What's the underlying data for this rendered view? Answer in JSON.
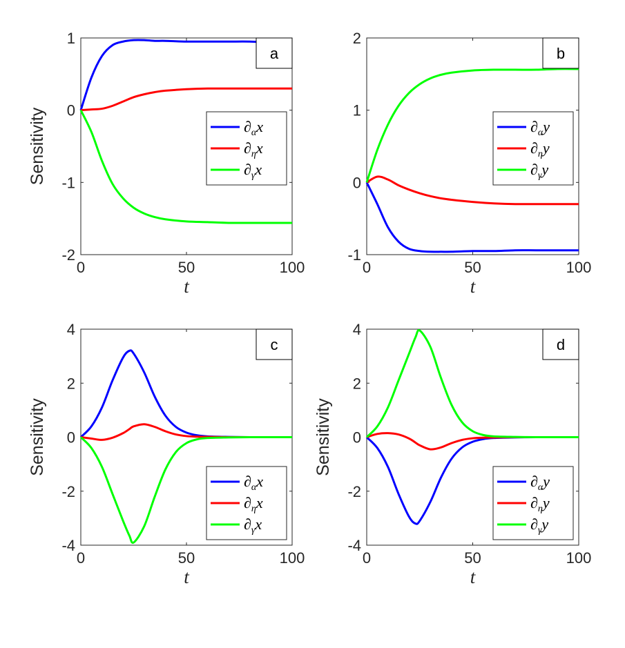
{
  "chart_data": [
    {
      "panel": "a",
      "type": "line",
      "xlabel": "t",
      "ylabel": "Sensitivity",
      "xlim": [
        0,
        100
      ],
      "ylim": [
        -2,
        1
      ],
      "xticks": [
        "0",
        "50",
        "100"
      ],
      "yticks": [
        "-2",
        "-1",
        "0",
        "1"
      ],
      "legend_position": "right-middle",
      "x": [
        0,
        5,
        10,
        15,
        20,
        25,
        30,
        35,
        40,
        50,
        60,
        70,
        80,
        90,
        100
      ],
      "series": [
        {
          "name": "∂αx",
          "sym": "∂",
          "sub": "α",
          "var": "x",
          "color": "#0000ff",
          "values": [
            0,
            0.45,
            0.75,
            0.9,
            0.95,
            0.97,
            0.97,
            0.96,
            0.96,
            0.95,
            0.95,
            0.95,
            0.95,
            0.94,
            0.94
          ]
        },
        {
          "name": "∂ηx",
          "sym": "∂",
          "sub": "η",
          "var": "x",
          "color": "#ff0000",
          "values": [
            0,
            0.01,
            0.02,
            0.06,
            0.12,
            0.18,
            0.22,
            0.25,
            0.27,
            0.29,
            0.3,
            0.3,
            0.3,
            0.3,
            0.3
          ]
        },
        {
          "name": "∂γx",
          "sym": "∂",
          "sub": "γ",
          "var": "x",
          "color": "#00ff00",
          "values": [
            0,
            -0.3,
            -0.7,
            -1.02,
            -1.22,
            -1.35,
            -1.43,
            -1.48,
            -1.51,
            -1.54,
            -1.55,
            -1.56,
            -1.56,
            -1.56,
            -1.56
          ]
        }
      ]
    },
    {
      "panel": "b",
      "type": "line",
      "xlabel": "t",
      "ylabel": "",
      "xlim": [
        0,
        100
      ],
      "ylim": [
        -1,
        2
      ],
      "xticks": [
        "0",
        "50",
        "100"
      ],
      "yticks": [
        "-1",
        "0",
        "1",
        "2"
      ],
      "legend_position": "right-middle",
      "x": [
        0,
        5,
        10,
        15,
        20,
        25,
        30,
        35,
        40,
        50,
        60,
        70,
        80,
        90,
        100
      ],
      "series": [
        {
          "name": "∂αy",
          "sym": "∂",
          "sub": "α",
          "var": "y",
          "color": "#0000ff",
          "values": [
            0,
            -0.3,
            -0.62,
            -0.82,
            -0.92,
            -0.95,
            -0.96,
            -0.96,
            -0.96,
            -0.95,
            -0.95,
            -0.94,
            -0.94,
            -0.94,
            -0.94
          ]
        },
        {
          "name": "∂ηy",
          "sym": "∂",
          "sub": "η",
          "var": "y",
          "color": "#ff0000",
          "values": [
            0,
            0.08,
            0.04,
            -0.04,
            -0.1,
            -0.15,
            -0.19,
            -0.22,
            -0.24,
            -0.27,
            -0.29,
            -0.3,
            -0.3,
            -0.3,
            -0.3
          ]
        },
        {
          "name": "∂γy",
          "sym": "∂",
          "sub": "γ",
          "var": "y",
          "color": "#00ff00",
          "values": [
            0,
            0.45,
            0.8,
            1.06,
            1.24,
            1.36,
            1.44,
            1.49,
            1.52,
            1.55,
            1.56,
            1.56,
            1.56,
            1.57,
            1.57
          ]
        }
      ]
    },
    {
      "panel": "c",
      "type": "line",
      "xlabel": "t",
      "ylabel": "Sensitivity",
      "xlim": [
        0,
        100
      ],
      "ylim": [
        -4,
        4
      ],
      "xticks": [
        "0",
        "50",
        "100"
      ],
      "yticks": [
        "-4",
        "-2",
        "0",
        "2",
        "4"
      ],
      "legend_position": "bottom-right",
      "x": [
        0,
        5,
        10,
        15,
        20,
        23,
        25,
        30,
        35,
        40,
        45,
        50,
        55,
        60,
        70,
        80,
        90,
        100
      ],
      "series": [
        {
          "name": "∂αx",
          "sym": "∂",
          "sub": "α",
          "var": "x",
          "color": "#0000ff",
          "values": [
            0,
            0.4,
            1.1,
            2.1,
            2.95,
            3.2,
            3.1,
            2.4,
            1.5,
            0.8,
            0.38,
            0.17,
            0.07,
            0.03,
            0.01,
            0,
            0,
            0
          ]
        },
        {
          "name": "∂ηx",
          "sym": "∂",
          "sub": "η",
          "var": "x",
          "color": "#ff0000",
          "values": [
            0,
            -0.05,
            -0.1,
            -0.02,
            0.15,
            0.3,
            0.4,
            0.48,
            0.38,
            0.22,
            0.1,
            0.04,
            0.02,
            0.01,
            0,
            0,
            0,
            0
          ]
        },
        {
          "name": "∂γx",
          "sym": "∂",
          "sub": "γ",
          "var": "x",
          "color": "#00ff00",
          "values": [
            0,
            -0.4,
            -1.1,
            -2.1,
            -3.1,
            -3.65,
            -3.9,
            -3.3,
            -2.2,
            -1.2,
            -0.55,
            -0.22,
            -0.08,
            -0.03,
            -0.01,
            0,
            0,
            0
          ]
        }
      ]
    },
    {
      "panel": "d",
      "type": "line",
      "xlabel": "t",
      "ylabel": "Sensitivity",
      "xlim": [
        0,
        100
      ],
      "ylim": [
        -4,
        4
      ],
      "xticks": [
        "0",
        "50",
        "100"
      ],
      "yticks": [
        "-4",
        "-2",
        "0",
        "2",
        "4"
      ],
      "legend_position": "bottom-right",
      "x": [
        0,
        5,
        10,
        15,
        20,
        23,
        25,
        30,
        35,
        40,
        45,
        50,
        55,
        60,
        70,
        80,
        90,
        100
      ],
      "series": [
        {
          "name": "∂αy",
          "sym": "∂",
          "sub": "α",
          "var": "y",
          "color": "#0000ff",
          "values": [
            0,
            -0.4,
            -1.1,
            -2.1,
            -2.95,
            -3.2,
            -3.1,
            -2.4,
            -1.5,
            -0.8,
            -0.38,
            -0.17,
            -0.07,
            -0.03,
            -0.01,
            0,
            0,
            0
          ]
        },
        {
          "name": "∂ηy",
          "sym": "∂",
          "sub": "η",
          "var": "y",
          "color": "#ff0000",
          "values": [
            0,
            0.12,
            0.15,
            0.1,
            -0.05,
            -0.2,
            -0.3,
            -0.45,
            -0.38,
            -0.22,
            -0.1,
            -0.04,
            -0.02,
            -0.01,
            0,
            0,
            0,
            0
          ]
        },
        {
          "name": "∂γy",
          "sym": "∂",
          "sub": "γ",
          "var": "y",
          "color": "#00ff00",
          "values": [
            0,
            0.4,
            1.1,
            2.1,
            3.1,
            3.7,
            3.95,
            3.35,
            2.2,
            1.2,
            0.55,
            0.22,
            0.08,
            0.03,
            0.01,
            0,
            0,
            0
          ]
        }
      ]
    }
  ]
}
